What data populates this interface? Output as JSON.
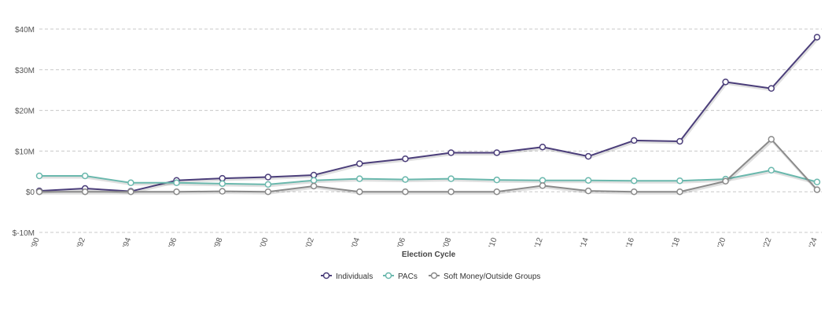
{
  "chart_data": {
    "type": "line",
    "title": "",
    "xlabel": "Election Cycle",
    "ylabel": "",
    "categories": [
      "'90",
      "'92",
      "'94",
      "'96",
      "'98",
      "'00",
      "'02",
      "'04",
      "'06",
      "'08",
      "'10",
      "'12",
      "'14",
      "'16",
      "'18",
      "'20",
      "'22",
      "'24"
    ],
    "ylim": [
      -10,
      40
    ],
    "yticks": [
      {
        "value": 40,
        "label": "$40M"
      },
      {
        "value": 30,
        "label": "$30M"
      },
      {
        "value": 20,
        "label": "$20M"
      },
      {
        "value": 10,
        "label": "$10M"
      },
      {
        "value": 0,
        "label": "$0"
      },
      {
        "value": -10,
        "label": "$-10M"
      }
    ],
    "grid": true,
    "legend_position": "bottom",
    "series": [
      {
        "name": "Individuals",
        "color": "#4b3e7a",
        "values": [
          0.2,
          0.8,
          0.1,
          2.8,
          3.3,
          3.6,
          4.1,
          6.9,
          8.1,
          9.6,
          9.6,
          11.0,
          8.7,
          12.6,
          12.4,
          27.0,
          25.4,
          38.0
        ]
      },
      {
        "name": "PACs",
        "color": "#6ab8ad",
        "values": [
          3.9,
          3.9,
          2.2,
          2.2,
          2.0,
          1.8,
          2.8,
          3.2,
          3.0,
          3.2,
          2.9,
          2.8,
          2.8,
          2.7,
          2.7,
          3.1,
          5.3,
          2.4
        ]
      },
      {
        "name": "Soft Money/Outside Groups",
        "color": "#8a8a8a",
        "values": [
          0.0,
          0.0,
          0.0,
          0.0,
          0.1,
          0.0,
          1.4,
          0.0,
          0.0,
          0.0,
          0.0,
          1.5,
          0.2,
          0.0,
          0.0,
          2.6,
          12.9,
          0.5
        ]
      }
    ]
  }
}
